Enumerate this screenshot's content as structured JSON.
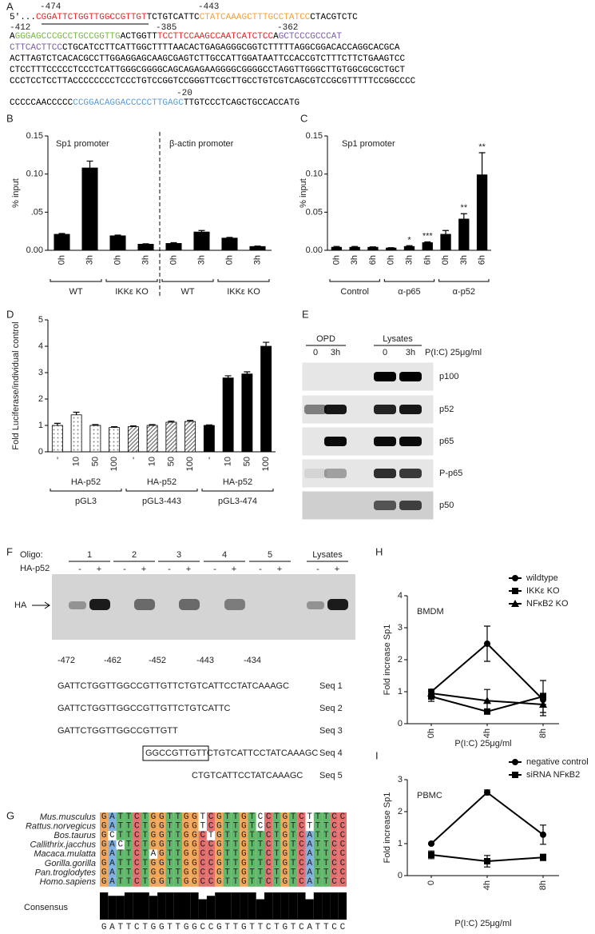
{
  "sequence_panel": {
    "panel": "A",
    "positions": [
      -474,
      -443,
      -412,
      -385,
      -362,
      -20
    ],
    "lines": [
      [
        {
          "text": "5'...",
          "color": "#000000"
        },
        {
          "text": "CGGATTCTGGTTGGCCGTTGT",
          "color": "#e8262c"
        },
        {
          "text": "TCTGTCATTC",
          "color": "#000000"
        },
        {
          "text": "CTATCAAAGCTTTGCCTATCC",
          "color": "#f4a13b"
        },
        {
          "text": "CTACGTCTC",
          "color": "#000000"
        }
      ],
      [
        {
          "text": "A",
          "color": "#000000"
        },
        {
          "text": "GGGAGCCCGCCTGCCGGTTG",
          "color": "#7ab648"
        },
        {
          "text": "ACTGGTT",
          "color": "#000000"
        },
        {
          "text": "TCCTTCCAAGCCAATCATCTCC",
          "color": "#e8262c"
        },
        {
          "text": "A",
          "color": "#000000"
        },
        {
          "text": "GCTCCCGCCCAT",
          "color": "#7b5ea7"
        }
      ],
      [
        {
          "text": "CTTCACTTCC",
          "color": "#7b5ea7"
        },
        {
          "text": "CTGCATCCTTCATTGGCTTTTAACACTGAGAGGGCGGTCTTTTTAGGCGGACACCAGGCACGCA",
          "color": "#000000"
        }
      ],
      [
        {
          "text": "ACTTAGTCTCACACGCCTTGGAGGAGCAAGCGAGTCTTGCCATTGGATAATTCCACCGTCTTTCTTCTGAAGTCC",
          "color": "#000000"
        }
      ],
      [
        {
          "text": "CTCCTTTCCCCCTCCCTCATTGGGCGGGGCAGCAGAGAAGGGGCGGGGCCTAGGTTGGGCTTGTGGCGCGCTGCT",
          "color": "#000000"
        }
      ],
      [
        {
          "text": "CCCTCCTCCTTACCCCCCCCTCCCTGTCCGGTCCGGGTTCGCTTGCCTGTCGTCAGCGTCCGCGTTTTTCCGGCCCC",
          "color": "#000000"
        }
      ],
      [
        {
          "text": "CCCCCAACCCCC",
          "color": "#000000"
        },
        {
          "text": "CCGGACAGGACCCCCTTGAGC",
          "color": "#5b9bd5"
        },
        {
          "text": "TTGTCCCTCAGCTGCCACCATG",
          "color": "#000000"
        }
      ]
    ]
  },
  "chart_data": [
    {
      "type": "bar",
      "panel": "B",
      "ylabel": "% input",
      "annotations": [
        "Sp1 promoter",
        "β-actin promoter"
      ],
      "categories": [
        "0h",
        "3h",
        "0h",
        "3h",
        "0h",
        "3h",
        "0h",
        "3h"
      ],
      "values": [
        0.021,
        0.108,
        0.019,
        0.008,
        0.009,
        0.024,
        0.016,
        0.005
      ],
      "errors": [
        0.001,
        0.009,
        0.001,
        0.0005,
        0.001,
        0.002,
        0.001,
        0.0005
      ],
      "groups": [
        "WT",
        "IKKε KO",
        "WT",
        "IKKε KO"
      ],
      "color": "#000000",
      "ylim": [
        0,
        0.15
      ],
      "yticks": [
        {
          "value": 0,
          "label": "0.00"
        },
        {
          "value": 0.05,
          "label": ".05"
        },
        {
          "value": 0.1,
          "label": "0.10"
        },
        0.15
      ]
    },
    {
      "type": "bar",
      "panel": "C",
      "ylabel": "% input",
      "annotations": [
        "Sp1 promoter"
      ],
      "categories": [
        "0h",
        "3h",
        "6h",
        "0h",
        "3h",
        "6h",
        "0h",
        "3h",
        "6h"
      ],
      "values": [
        0.004,
        0.004,
        0.004,
        0.003,
        0.005,
        0.01,
        0.021,
        0.041,
        0.099
      ],
      "errors": [
        0.001,
        0.001,
        0.0005,
        0.0005,
        0.001,
        0.001,
        0.005,
        0.007,
        0.029
      ],
      "significance": [
        null,
        null,
        null,
        null,
        "*",
        "***",
        null,
        "**",
        "**"
      ],
      "groups": [
        "Control",
        "α-p65",
        "α-p52"
      ],
      "color": "#000000",
      "ylim": [
        0,
        0.15
      ],
      "yticks": [
        {
          "value": 0,
          "label": "0.00"
        },
        {
          "value": 0.05,
          "label": "0.05"
        },
        {
          "value": 0.1,
          "label": "0.10"
        },
        0.15
      ]
    },
    {
      "type": "bar",
      "panel": "D",
      "ylabel": "Fold Luciferase/individual control",
      "categories": [
        "-",
        "10",
        "50",
        "100",
        "-",
        "10",
        "50",
        "100",
        "-",
        "10",
        "50",
        "100"
      ],
      "values": [
        1.0,
        1.4,
        1.0,
        0.92,
        0.95,
        1.0,
        1.12,
        1.15,
        1.0,
        2.8,
        2.95,
        4.0
      ],
      "errors": [
        0.08,
        0.1,
        0.03,
        0.03,
        0.03,
        0.03,
        0.04,
        0.04,
        0.02,
        0.08,
        0.08,
        0.15
      ],
      "groups": [
        "pGL3",
        "pGL3-443",
        "pGL3-474"
      ],
      "group_sublabels": [
        "HA-p52",
        "HA-p52",
        "HA-p52"
      ],
      "group_colors": [
        "#8c8c8c",
        "#6e6e6e",
        "#000000"
      ],
      "group_patterns": [
        "dotted",
        "hatched",
        "solid"
      ],
      "ylim": [
        0,
        5
      ],
      "yticks": [
        0,
        1,
        2,
        3,
        4,
        5
      ]
    },
    {
      "type": "line",
      "panel": "H",
      "ylabel": "Fold increase Sp1",
      "xlabel": "P(I:C) 25μg/ml",
      "annotations": [
        "BMDM"
      ],
      "categories": [
        "0h",
        "4h",
        "8h"
      ],
      "series": [
        {
          "name": "wildtype",
          "color": "#000000",
          "marker": "circle",
          "values": [
            1.0,
            2.5,
            0.75
          ],
          "errors": [
            0.08,
            0.55,
            0.15
          ]
        },
        {
          "name": "IKKε KO",
          "color": "#000000",
          "marker": "square",
          "values": [
            0.85,
            0.38,
            0.85
          ],
          "errors": [
            0.15,
            0.05,
            0.5
          ]
        },
        {
          "name": "NFκB2 KO",
          "color": "#000000",
          "marker": "triangle",
          "values": [
            0.95,
            0.72,
            0.6
          ],
          "errors": [
            0.1,
            0.35,
            0.35
          ]
        }
      ],
      "legend": "top-right",
      "ylim": [
        0,
        4
      ],
      "yticks": [
        0,
        1,
        2,
        3,
        4
      ]
    },
    {
      "type": "line",
      "panel": "I",
      "ylabel": "Fold increase Sp1",
      "xlabel": "P(I:C) 25μg/ml",
      "annotations": [
        "PBMC"
      ],
      "categories": [
        "0",
        "4h",
        "8h"
      ],
      "series": [
        {
          "name": "negative control",
          "color": "#000000",
          "marker": "circle",
          "values": [
            1.0,
            2.6,
            1.28
          ],
          "errors": [
            0.02,
            0.08,
            0.3
          ]
        },
        {
          "name": "siRNA NFκB2",
          "color": "#000000",
          "marker": "square",
          "values": [
            0.65,
            0.45,
            0.57
          ],
          "errors": [
            0.12,
            0.18,
            0.1
          ]
        }
      ],
      "legend": "top-right",
      "ylim": [
        0,
        3
      ],
      "yticks": [
        0,
        1,
        2,
        3
      ]
    }
  ],
  "blot": {
    "panel": "E",
    "headers": [
      "OPD",
      "Lysates"
    ],
    "lanes": [
      "0",
      "3h",
      "0",
      "3h"
    ],
    "treatment": "P(I:C) 25μg/ml",
    "rows": [
      "p100",
      "p52",
      "p65",
      "P-p65",
      "p50"
    ]
  },
  "oligo_assay": {
    "panel": "F",
    "oligo_label": "Oligo:",
    "oligos": [
      "1",
      "2",
      "3",
      "4",
      "5",
      "Lysates"
    ],
    "treatment": "HA-p52",
    "signs": [
      "-",
      "+"
    ],
    "band_label": "HA",
    "positions": [
      -472,
      -462,
      -452,
      -443,
      -434
    ],
    "sequences": [
      {
        "seq": "GATTCTGGTTGGCCGTTGTTCTGTCATTCCTATCAAAGC",
        "name": "Seq 1"
      },
      {
        "seq": "GATTCTGGTTGGCCGTTGTTCTGTCATTC",
        "name": "Seq 2"
      },
      {
        "seq": "GATTCTGGTTGGCCGTTGTT",
        "name": "Seq 3"
      },
      {
        "seq": "GGCCGTTGTTCTGTCATTCCTATCAAAGC",
        "name": "Seq 4"
      },
      {
        "seq": "CTGTCATTCCTATCAAAGC",
        "name": "Seq 5"
      }
    ]
  },
  "alignment": {
    "panel": "G",
    "species": [
      {
        "name": "Mus.musculus",
        "seq": "GATTCTGGTTGGTCGTTGTCCTGTCTTTCC"
      },
      {
        "name": "Rattus.norvegicus",
        "seq": "GATTCTGGTTGGTCGTTGTCCTGTCTTTCC"
      },
      {
        "name": "Bos.taurus",
        "seq": "GCTTCTGGTTGGCTGTTGTTCTGTCATTCC"
      },
      {
        "name": "Callithrix.jacchus",
        "seq": "GACTCTGGTTGGCCGTTGTTCTGTCATTCC"
      },
      {
        "name": "Macaca.mulatta",
        "seq": "GATTCTAGTTGGCCGTTGTTCTGTCATTCC"
      },
      {
        "name": "Gorilla.gorilla",
        "seq": "GATTCTGGTTGGCCGTTGTTCTGTCATTCC"
      },
      {
        "name": "Pan.troglodytes",
        "seq": "GATTCTGGTTGGCCGTTGTTCTGTCATTCC"
      },
      {
        "name": "Homo.sapiens",
        "seq": "GATTCTGGTTGGCCGTTGTTCTGTCATTCC"
      }
    ],
    "consensus_label": "Consensus",
    "consensus": "GATTCTGGTTGGCCGTTGTTCTGTCATTCC",
    "nucleotide_colors": {
      "A": "#7fb2e0",
      "C": "#e36f6f",
      "G": "#f2a65a",
      "T": "#62b86a"
    }
  }
}
